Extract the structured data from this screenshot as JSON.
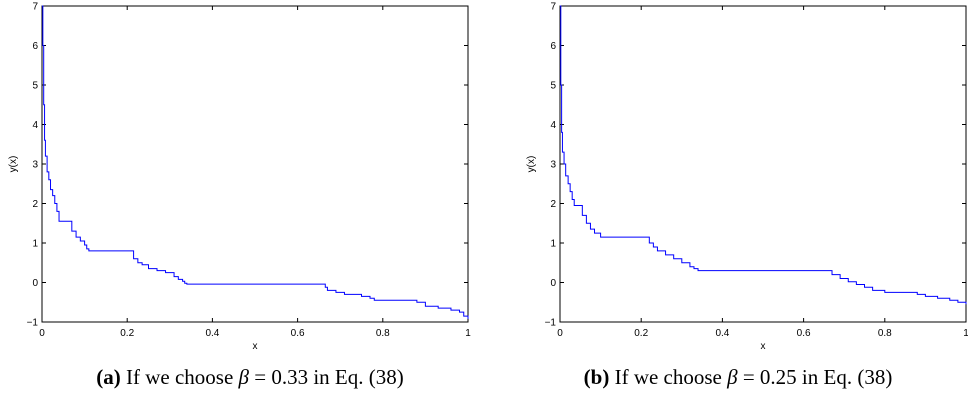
{
  "chart_data": [
    {
      "type": "line",
      "xlabel": "x",
      "ylabel": "y(x)",
      "xlim": [
        0,
        1
      ],
      "ylim": [
        -1,
        7
      ],
      "xticks": [
        "0",
        "0.2",
        "0.4",
        "0.6",
        "0.8",
        "1"
      ],
      "yticks": [
        "−1",
        "0",
        "1",
        "2",
        "3",
        "4",
        "5",
        "6",
        "7"
      ],
      "series_color": "#0000ff",
      "x": [
        0,
        0.002,
        0.004,
        0.006,
        0.008,
        0.012,
        0.016,
        0.02,
        0.025,
        0.03,
        0.035,
        0.04,
        0.06,
        0.07,
        0.08,
        0.09,
        0.1,
        0.105,
        0.11,
        0.2,
        0.215,
        0.225,
        0.235,
        0.25,
        0.27,
        0.29,
        0.31,
        0.32,
        0.33,
        0.335,
        0.34,
        0.5,
        0.66,
        0.665,
        0.67,
        0.69,
        0.71,
        0.75,
        0.77,
        0.78,
        0.86,
        0.88,
        0.9,
        0.93,
        0.96,
        0.98,
        0.99,
        1.0
      ],
      "y": [
        7.0,
        6.0,
        4.5,
        3.6,
        3.2,
        2.8,
        2.6,
        2.35,
        2.2,
        2.0,
        1.8,
        1.55,
        1.55,
        1.3,
        1.15,
        1.05,
        0.95,
        0.85,
        0.8,
        0.8,
        0.6,
        0.5,
        0.45,
        0.35,
        0.3,
        0.25,
        0.15,
        0.08,
        0.03,
        -0.02,
        -0.04,
        -0.04,
        -0.04,
        -0.12,
        -0.2,
        -0.25,
        -0.3,
        -0.35,
        -0.4,
        -0.45,
        -0.45,
        -0.5,
        -0.6,
        -0.65,
        -0.7,
        -0.75,
        -0.85,
        -0.92
      ]
    },
    {
      "type": "line",
      "xlabel": "x",
      "ylabel": "y(x)",
      "xlim": [
        0,
        1
      ],
      "ylim": [
        -1,
        7
      ],
      "xticks": [
        "0",
        "0.2",
        "0.4",
        "0.6",
        "0.8",
        "1"
      ],
      "yticks": [
        "−1",
        "0",
        "1",
        "2",
        "3",
        "4",
        "5",
        "6",
        "7"
      ],
      "series_color": "#0000ff",
      "x": [
        0,
        0.002,
        0.004,
        0.006,
        0.01,
        0.014,
        0.02,
        0.025,
        0.03,
        0.035,
        0.05,
        0.055,
        0.065,
        0.075,
        0.085,
        0.1,
        0.2,
        0.22,
        0.23,
        0.24,
        0.26,
        0.28,
        0.3,
        0.32,
        0.33,
        0.34,
        0.5,
        0.66,
        0.67,
        0.69,
        0.71,
        0.73,
        0.75,
        0.77,
        0.8,
        0.86,
        0.88,
        0.9,
        0.93,
        0.96,
        0.98,
        1.0
      ],
      "y": [
        7.0,
        5.0,
        3.8,
        3.3,
        3.0,
        2.7,
        2.5,
        2.3,
        2.1,
        1.95,
        1.95,
        1.7,
        1.5,
        1.35,
        1.25,
        1.15,
        1.15,
        1.0,
        0.9,
        0.8,
        0.7,
        0.6,
        0.5,
        0.4,
        0.35,
        0.3,
        0.3,
        0.3,
        0.2,
        0.1,
        0.02,
        -0.05,
        -0.12,
        -0.2,
        -0.25,
        -0.25,
        -0.3,
        -0.35,
        -0.4,
        -0.45,
        -0.5,
        -0.55
      ]
    }
  ],
  "captions": [
    {
      "label": "(a)",
      "text_before": " If we choose ",
      "beta": "β",
      "text_after": " = 0.33 in Eq. (38)"
    },
    {
      "label": "(b)",
      "text_before": " If we choose ",
      "beta": "β",
      "text_after": " = 0.25 in Eq. (38)"
    }
  ]
}
